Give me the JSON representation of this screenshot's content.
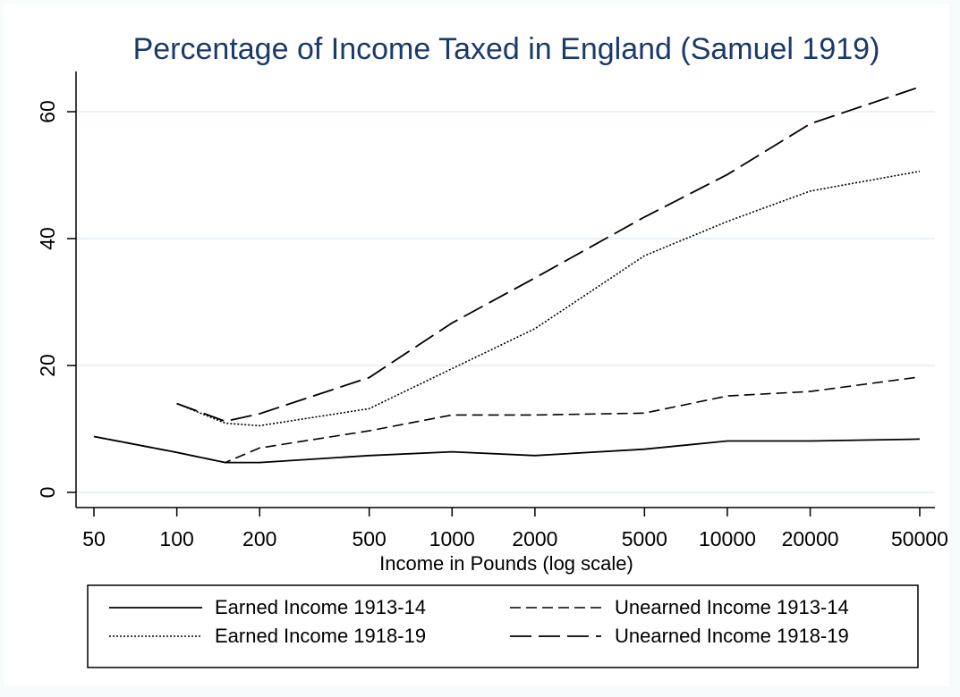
{
  "chart_data": {
    "type": "line",
    "title": "Percentage of Income Taxed in England (Samuel 1919)",
    "xlabel": "Income in Pounds (log scale)",
    "ylabel": "",
    "x_scale": "log",
    "x_ticks": [
      50,
      100,
      200,
      500,
      1000,
      2000,
      5000,
      10000,
      20000,
      50000
    ],
    "x_tick_labels": [
      "50",
      "100",
      "200",
      "500",
      "1000",
      "2000",
      "5000",
      "10000",
      "20000",
      "50000"
    ],
    "y_ticks": [
      0,
      20,
      40,
      60
    ],
    "y_tick_labels": [
      "0",
      "20",
      "40",
      "60"
    ],
    "xlim": [
      50,
      50000
    ],
    "ylim": [
      0,
      64
    ],
    "grid": "horizontal",
    "legend_position": "bottom",
    "series": [
      {
        "name": "Earned Income 1913-14",
        "style": "solid",
        "x": [
          50,
          100,
          150,
          200,
          500,
          1000,
          2000,
          5000,
          10000,
          20000,
          50000
        ],
        "y": [
          8.8,
          6.3,
          4.7,
          4.7,
          5.8,
          6.4,
          5.8,
          6.8,
          8.1,
          8.1,
          8.4
        ]
      },
      {
        "name": "Unearned Income 1913-14",
        "style": "dash",
        "x": [
          50,
          100,
          150,
          200,
          500,
          1000,
          2000,
          5000,
          10000,
          20000,
          50000
        ],
        "y": [
          8.8,
          6.3,
          4.7,
          7.0,
          9.7,
          12.2,
          12.2,
          12.5,
          15.2,
          15.9,
          18.2
        ]
      },
      {
        "name": "Earned Income 1918-19",
        "style": "dot",
        "x": [
          100,
          150,
          200,
          500,
          1000,
          2000,
          5000,
          10000,
          20000,
          50000
        ],
        "y": [
          14.0,
          10.9,
          10.5,
          13.2,
          19.5,
          25.8,
          37.3,
          42.7,
          47.5,
          50.6
        ]
      },
      {
        "name": "Unearned Income 1918-19",
        "style": "longdash",
        "x": [
          100,
          150,
          200,
          500,
          1000,
          2000,
          5000,
          10000,
          20000,
          50000
        ],
        "y": [
          14.0,
          11.2,
          12.4,
          18.1,
          26.7,
          33.8,
          43.4,
          50.1,
          58.1,
          63.9
        ]
      }
    ]
  }
}
